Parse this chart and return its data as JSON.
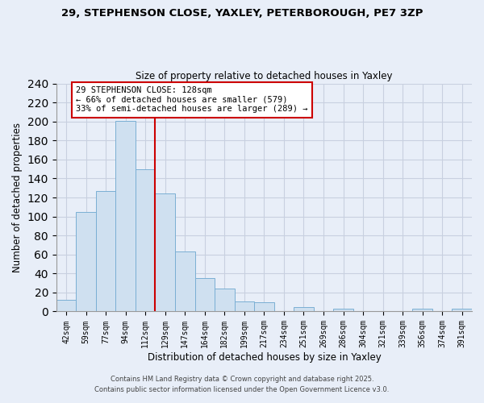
{
  "title": "29, STEPHENSON CLOSE, YAXLEY, PETERBOROUGH, PE7 3ZP",
  "subtitle": "Size of property relative to detached houses in Yaxley",
  "xlabel": "Distribution of detached houses by size in Yaxley",
  "ylabel": "Number of detached properties",
  "bin_labels": [
    "42sqm",
    "59sqm",
    "77sqm",
    "94sqm",
    "112sqm",
    "129sqm",
    "147sqm",
    "164sqm",
    "182sqm",
    "199sqm",
    "217sqm",
    "234sqm",
    "251sqm",
    "269sqm",
    "286sqm",
    "304sqm",
    "321sqm",
    "339sqm",
    "356sqm",
    "374sqm",
    "391sqm"
  ],
  "bar_heights": [
    12,
    105,
    127,
    201,
    150,
    124,
    63,
    35,
    24,
    11,
    10,
    0,
    5,
    0,
    3,
    0,
    0,
    0,
    3,
    0,
    3
  ],
  "bar_color": "#cfe0f0",
  "bar_edge_color": "#7aafd4",
  "vline_color": "#cc0000",
  "ylim": [
    0,
    240
  ],
  "yticks": [
    0,
    20,
    40,
    60,
    80,
    100,
    120,
    140,
    160,
    180,
    200,
    220,
    240
  ],
  "annotation_title": "29 STEPHENSON CLOSE: 128sqm",
  "annotation_line1": "← 66% of detached houses are smaller (579)",
  "annotation_line2": "33% of semi-detached houses are larger (289) →",
  "annotation_box_color": "#ffffff",
  "annotation_box_edge": "#cc0000",
  "footer1": "Contains HM Land Registry data © Crown copyright and database right 2025.",
  "footer2": "Contains public sector information licensed under the Open Government Licence v3.0.",
  "background_color": "#e8eef8",
  "grid_color": "#c8d0e0",
  "plot_bg_color": "#e8eef8"
}
